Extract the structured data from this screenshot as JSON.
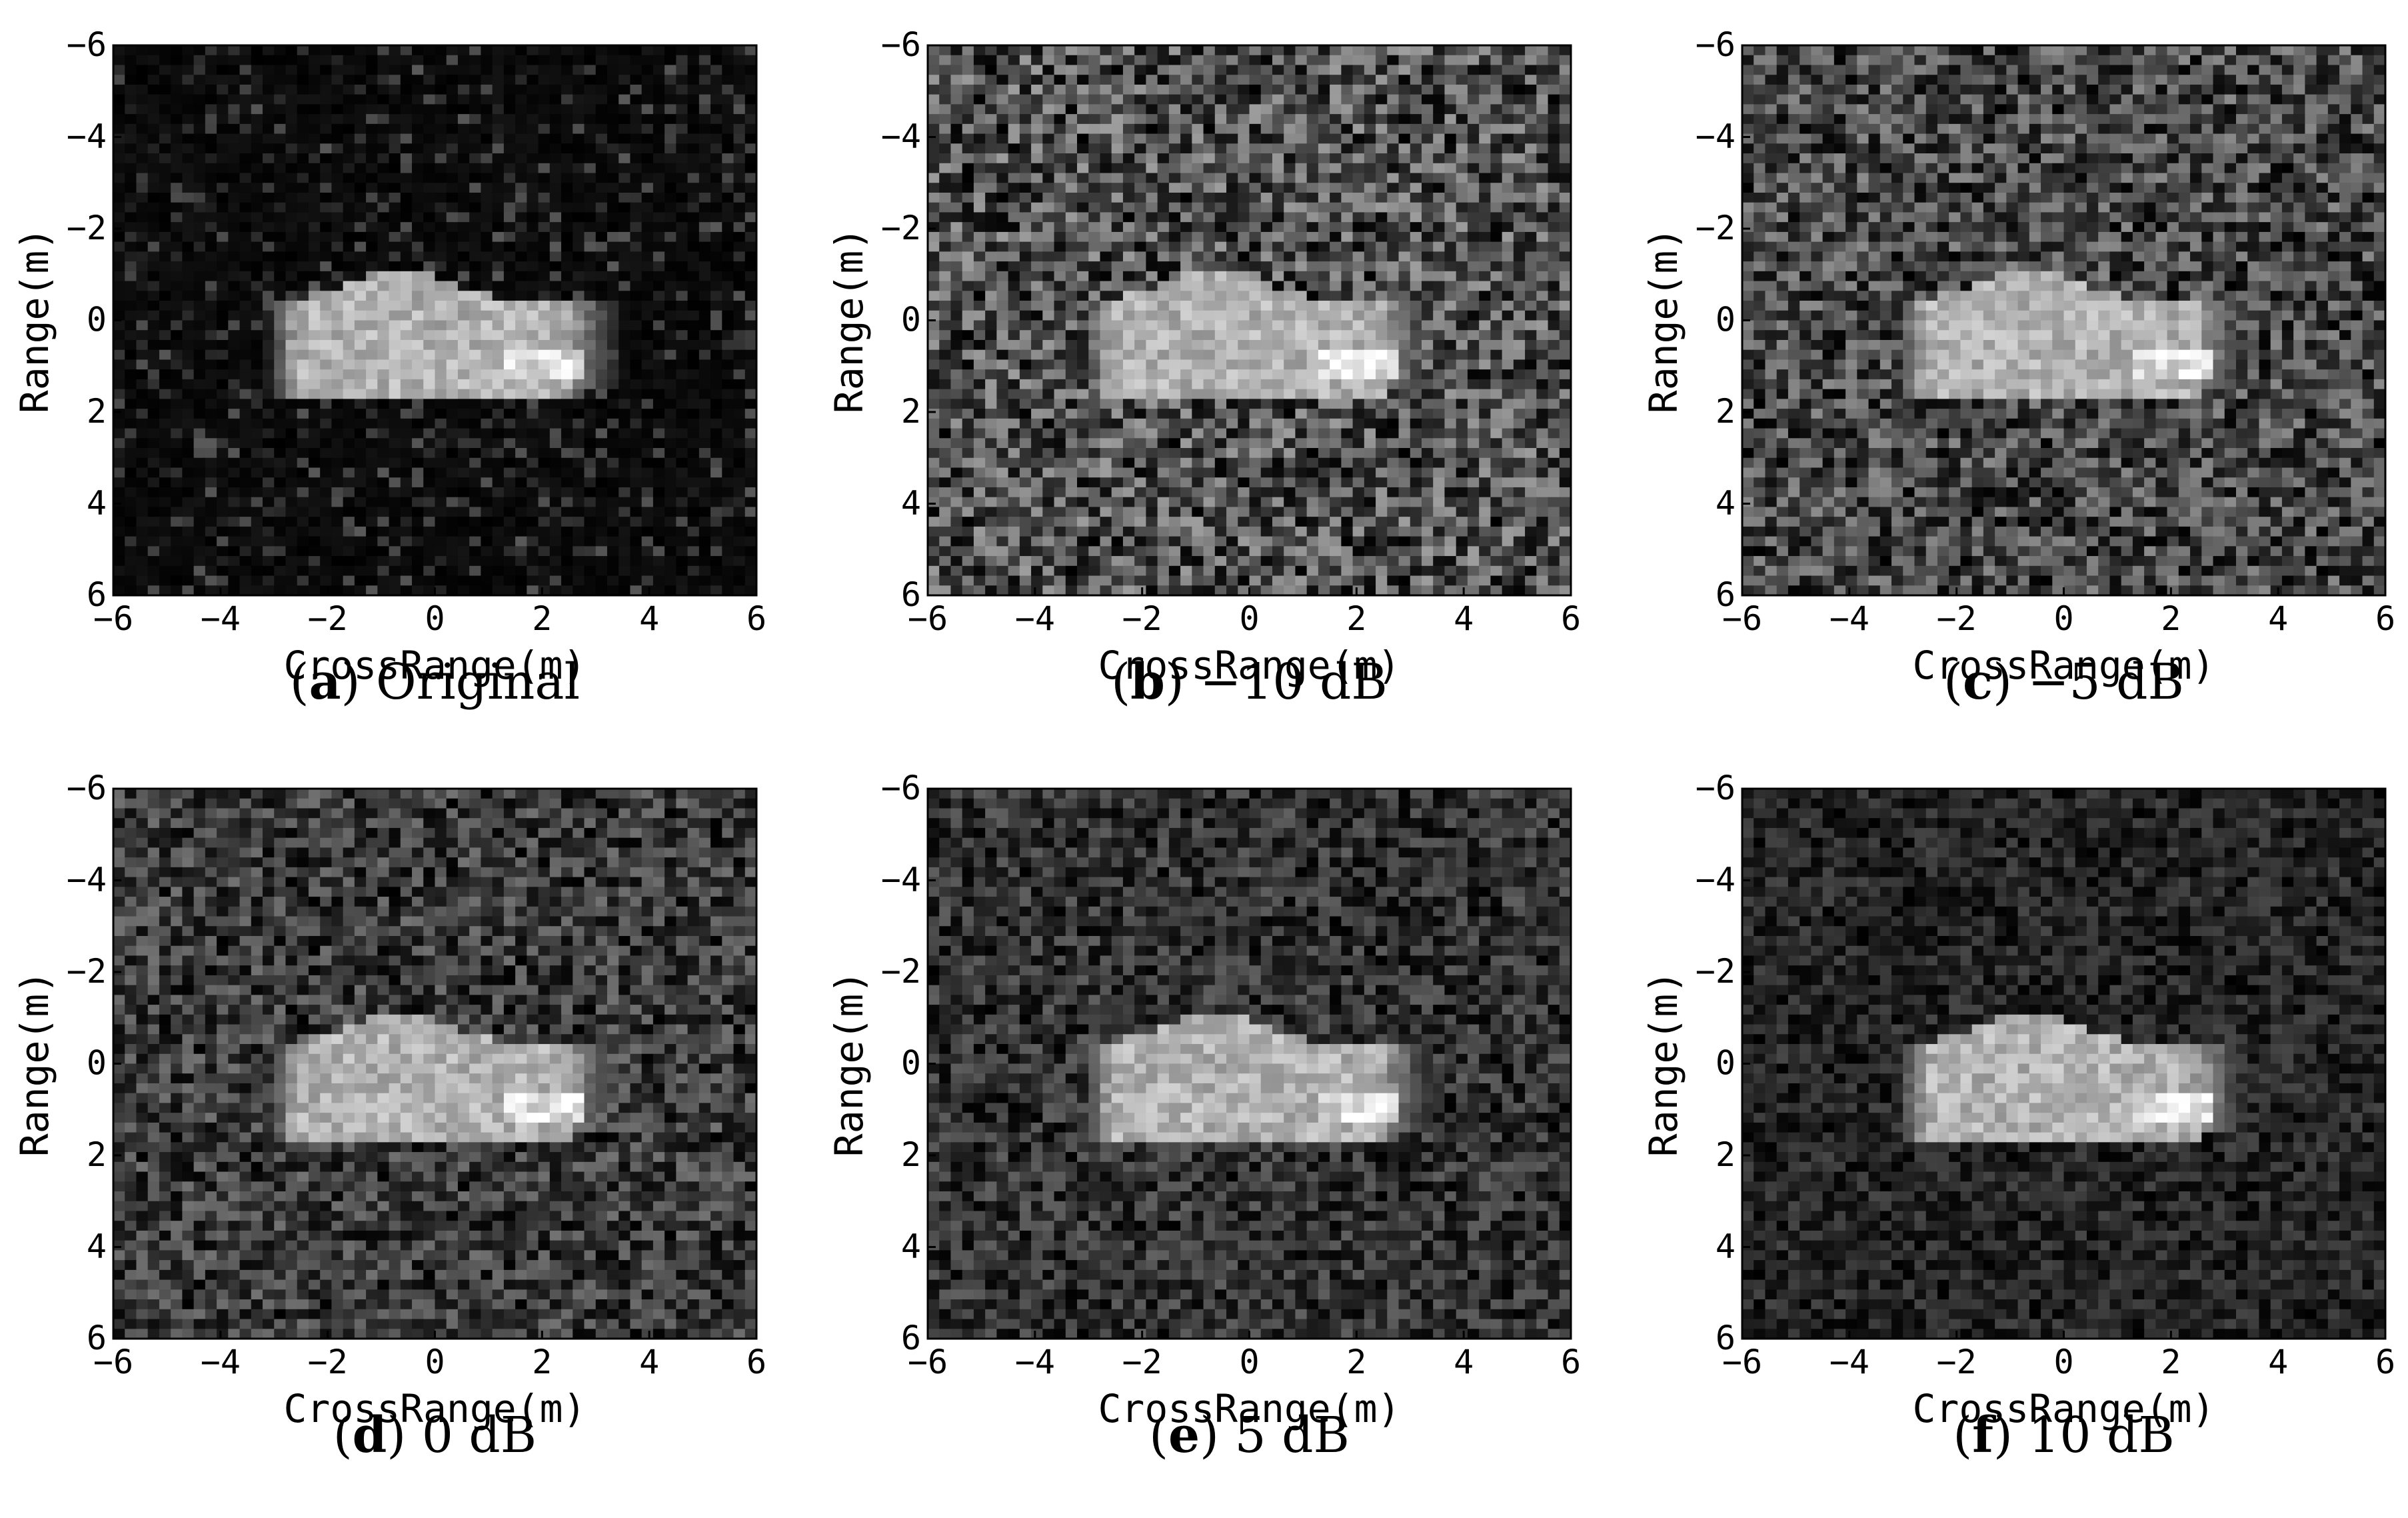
{
  "chart_data": [
    {
      "type": "heatmap",
      "panel_letter": "a",
      "panel_title": "Original",
      "noise": 0.13,
      "xlabel": "CrossRange(m)",
      "ylabel": "Range(m)",
      "xlim": [
        -6,
        6
      ],
      "ylim": [
        -6,
        6
      ],
      "xticks": [
        -6,
        -4,
        -2,
        0,
        2,
        4,
        6
      ],
      "yticks": [
        -6,
        -4,
        -2,
        0,
        2,
        4,
        6
      ],
      "colormap": "gray",
      "grid": false,
      "y_axis_reversed": true
    },
    {
      "type": "heatmap",
      "panel_letter": "b",
      "panel_title": "−10 dB",
      "noise": 0.62,
      "xlabel": "CrossRange(m)",
      "ylabel": "Range(m)",
      "xlim": [
        -6,
        6
      ],
      "ylim": [
        -6,
        6
      ],
      "xticks": [
        -6,
        -4,
        -2,
        0,
        2,
        4,
        6
      ],
      "yticks": [
        -6,
        -4,
        -2,
        0,
        2,
        4,
        6
      ],
      "colormap": "gray",
      "grid": false,
      "y_axis_reversed": true
    },
    {
      "type": "heatmap",
      "panel_letter": "c",
      "panel_title": "−5 dB",
      "noise": 0.55,
      "xlabel": "CrossRange(m)",
      "ylabel": "Range(m)",
      "xlim": [
        -6,
        6
      ],
      "ylim": [
        -6,
        6
      ],
      "xticks": [
        -6,
        -4,
        -2,
        0,
        2,
        4,
        6
      ],
      "yticks": [
        -6,
        -4,
        -2,
        0,
        2,
        4,
        6
      ],
      "colormap": "gray",
      "grid": false,
      "y_axis_reversed": true
    },
    {
      "type": "heatmap",
      "panel_letter": "d",
      "panel_title": "0 dB",
      "noise": 0.45,
      "xlabel": "CrossRange(m)",
      "ylabel": "Range(m)",
      "xlim": [
        -6,
        6
      ],
      "ylim": [
        -6,
        6
      ],
      "xticks": [
        -6,
        -4,
        -2,
        0,
        2,
        4,
        6
      ],
      "yticks": [
        -6,
        -4,
        -2,
        0,
        2,
        4,
        6
      ],
      "colormap": "gray",
      "grid": false,
      "y_axis_reversed": true
    },
    {
      "type": "heatmap",
      "panel_letter": "e",
      "panel_title": "5 dB",
      "noise": 0.38,
      "xlabel": "CrossRange(m)",
      "ylabel": "Range(m)",
      "xlim": [
        -6,
        6
      ],
      "ylim": [
        -6,
        6
      ],
      "xticks": [
        -6,
        -4,
        -2,
        0,
        2,
        4,
        6
      ],
      "yticks": [
        -6,
        -4,
        -2,
        0,
        2,
        4,
        6
      ],
      "colormap": "gray",
      "grid": false,
      "y_axis_reversed": true
    },
    {
      "type": "heatmap",
      "panel_letter": "f",
      "panel_title": "10 dB",
      "noise": 0.28,
      "xlabel": "CrossRange(m)",
      "ylabel": "Range(m)",
      "xlim": [
        -6,
        6
      ],
      "ylim": [
        -6,
        6
      ],
      "xticks": [
        -6,
        -4,
        -2,
        0,
        2,
        4,
        6
      ],
      "yticks": [
        -6,
        -4,
        -2,
        0,
        2,
        4,
        6
      ],
      "colormap": "gray",
      "grid": false,
      "y_axis_reversed": true
    }
  ]
}
